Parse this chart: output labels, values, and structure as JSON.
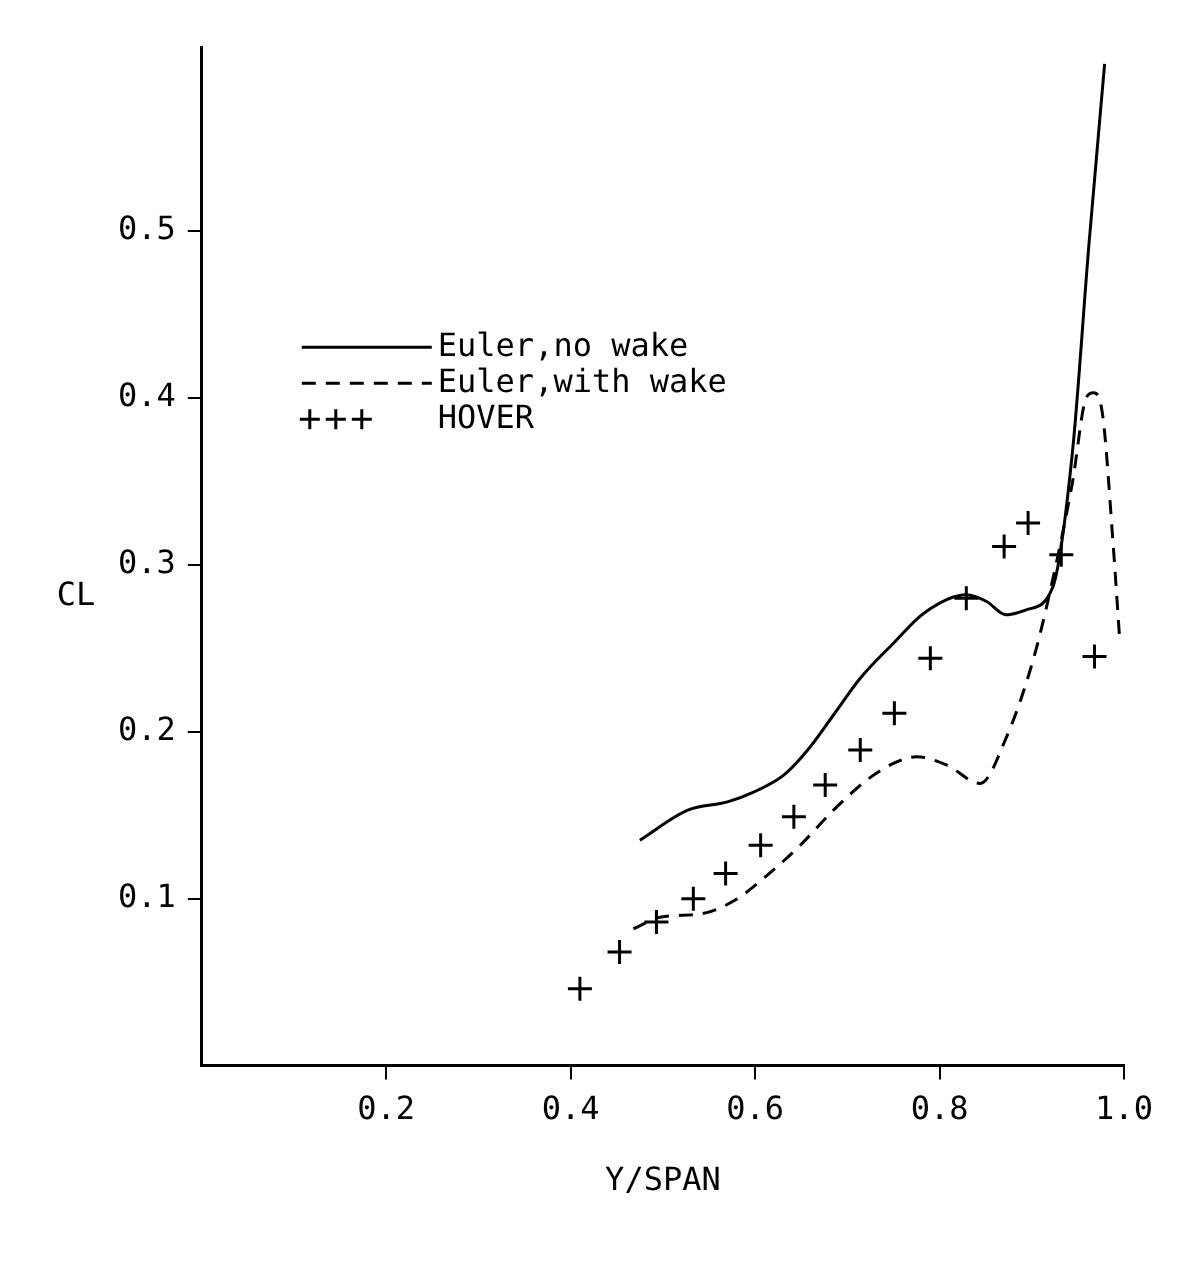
{
  "chart_data": {
    "type": "line",
    "xlabel": "Y/SPAN",
    "ylabel": "CL",
    "xlim": [
      0,
      1.0
    ],
    "ylim": [
      0,
      0.61
    ],
    "xticks": [
      0.2,
      0.4,
      0.6,
      0.8,
      {
        "value": 1.0,
        "label": "1.0"
      }
    ],
    "yticks": [
      0.1,
      0.2,
      0.3,
      0.4,
      0.5
    ],
    "grid": false,
    "legend": "top left",
    "series": [
      {
        "name": "Euler,no wake",
        "type": "line",
        "color": "#000000",
        "line_style": "solid",
        "marker": "none",
        "x": [
          0.475,
          0.527,
          0.57,
          0.599,
          0.631,
          0.657,
          0.685,
          0.714,
          0.75,
          0.783,
          0.829,
          0.851,
          0.872,
          0.894,
          0.923,
          0.944,
          0.962,
          0.979
        ],
        "values": [
          0.135,
          0.153,
          0.158,
          0.164,
          0.174,
          0.189,
          0.21,
          0.232,
          0.253,
          0.271,
          0.282,
          0.278,
          0.27,
          0.273,
          0.287,
          0.367,
          0.492,
          0.6
        ]
      },
      {
        "name": "Euler,with wake",
        "type": "line",
        "color": "#000000",
        "line_style": "dashed",
        "marker": "none",
        "x": [
          0.468,
          0.498,
          0.542,
          0.578,
          0.613,
          0.649,
          0.685,
          0.721,
          0.75,
          0.775,
          0.808,
          0.844,
          0.872,
          0.901,
          0.919,
          0.944,
          0.959,
          0.967,
          0.977,
          0.988,
          0.995
        ],
        "values": [
          0.082,
          0.089,
          0.091,
          0.099,
          0.114,
          0.132,
          0.153,
          0.171,
          0.181,
          0.185,
          0.18,
          0.169,
          0.196,
          0.242,
          0.282,
          0.349,
          0.4,
          0.403,
          0.389,
          0.314,
          0.258
        ]
      },
      {
        "name": "HOVER",
        "type": "scatter",
        "color": "#000000",
        "marker": "cross",
        "x": [
          0.41,
          0.453,
          0.493,
          0.533,
          0.568,
          0.606,
          0.642,
          0.676,
          0.714,
          0.751,
          0.79,
          0.829,
          0.87,
          0.896,
          0.932,
          0.968
        ],
        "values": [
          0.046,
          0.068,
          0.086,
          0.1,
          0.115,
          0.132,
          0.149,
          0.168,
          0.189,
          0.211,
          0.244,
          0.28,
          0.311,
          0.325,
          0.306,
          0.245
        ]
      }
    ]
  }
}
